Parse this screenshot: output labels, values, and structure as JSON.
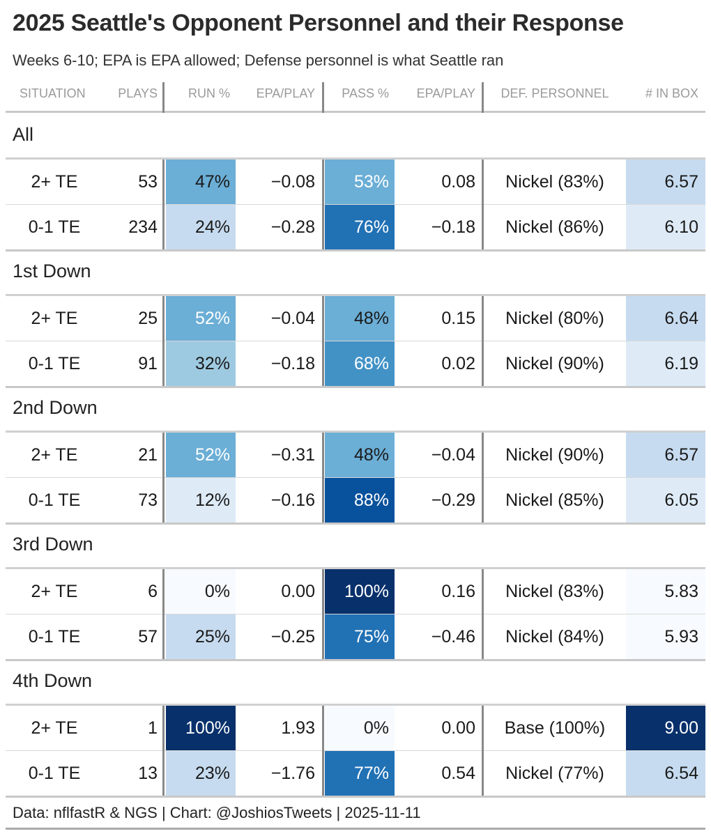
{
  "title": "2025 Seattle's Opponent Personnel and their Response",
  "subtitle": "Weeks 6-10; EPA is EPA allowed; Defense personnel is what Seattle ran",
  "footer": "Data: nflfastR & NGS | Chart: @JoshiosTweets | 2025-11-11",
  "headers": [
    "SITUATION",
    "PLAYS",
    "RUN %",
    "EPA/PLAY",
    "PASS %",
    "EPA/PLAY",
    "DEF. PERSONNEL",
    "# IN BOX"
  ],
  "chart_data": {
    "type": "table",
    "columns": [
      "SITUATION",
      "PLAYS",
      "RUN %",
      "EPA/PLAY",
      "PASS %",
      "EPA/PLAY",
      "DEF. PERSONNEL",
      "# IN BOX"
    ],
    "colors": {
      "scale": [
        "#f7fbff",
        "#deebf7",
        "#c6dbef",
        "#9ecae1",
        "#6baed6",
        "#4292c6",
        "#2171b5",
        "#08519c",
        "#08306b"
      ],
      "rule": "#d0d0d0",
      "divider": "#888888"
    },
    "box_range": [
      5.83,
      9.0
    ],
    "groups": [
      {
        "label": "All",
        "rows": [
          {
            "situation": "2+ TE",
            "plays": "53",
            "run_pct": "47%",
            "run_value": 47,
            "run_epa": "−0.08",
            "pass_pct": "53%",
            "pass_value": 53,
            "pass_epa": "0.08",
            "personnel": "Nickel (83%)",
            "in_box": "6.57",
            "in_box_value": 6.57
          },
          {
            "situation": "0-1 TE",
            "plays": "234",
            "run_pct": "24%",
            "run_value": 24,
            "run_epa": "−0.28",
            "pass_pct": "76%",
            "pass_value": 76,
            "pass_epa": "−0.18",
            "personnel": "Nickel (86%)",
            "in_box": "6.10",
            "in_box_value": 6.1
          }
        ]
      },
      {
        "label": "1st Down",
        "rows": [
          {
            "situation": "2+ TE",
            "plays": "25",
            "run_pct": "52%",
            "run_value": 52,
            "run_epa": "−0.04",
            "pass_pct": "48%",
            "pass_value": 48,
            "pass_epa": "0.15",
            "personnel": "Nickel (80%)",
            "in_box": "6.64",
            "in_box_value": 6.64
          },
          {
            "situation": "0-1 TE",
            "plays": "91",
            "run_pct": "32%",
            "run_value": 32,
            "run_epa": "−0.18",
            "pass_pct": "68%",
            "pass_value": 68,
            "pass_epa": "0.02",
            "personnel": "Nickel (90%)",
            "in_box": "6.19",
            "in_box_value": 6.19
          }
        ]
      },
      {
        "label": "2nd Down",
        "rows": [
          {
            "situation": "2+ TE",
            "plays": "21",
            "run_pct": "52%",
            "run_value": 52,
            "run_epa": "−0.31",
            "pass_pct": "48%",
            "pass_value": 48,
            "pass_epa": "−0.04",
            "personnel": "Nickel (90%)",
            "in_box": "6.57",
            "in_box_value": 6.57
          },
          {
            "situation": "0-1 TE",
            "plays": "73",
            "run_pct": "12%",
            "run_value": 12,
            "run_epa": "−0.16",
            "pass_pct": "88%",
            "pass_value": 88,
            "pass_epa": "−0.29",
            "personnel": "Nickel (85%)",
            "in_box": "6.05",
            "in_box_value": 6.05
          }
        ]
      },
      {
        "label": "3rd Down",
        "rows": [
          {
            "situation": "2+ TE",
            "plays": "6",
            "run_pct": "0%",
            "run_value": 0,
            "run_epa": "0.00",
            "pass_pct": "100%",
            "pass_value": 100,
            "pass_epa": "0.16",
            "personnel": "Nickel (83%)",
            "in_box": "5.83",
            "in_box_value": 5.83
          },
          {
            "situation": "0-1 TE",
            "plays": "57",
            "run_pct": "25%",
            "run_value": 25,
            "run_epa": "−0.25",
            "pass_pct": "75%",
            "pass_value": 75,
            "pass_epa": "−0.46",
            "personnel": "Nickel (84%)",
            "in_box": "5.93",
            "in_box_value": 5.93
          }
        ]
      },
      {
        "label": "4th Down",
        "rows": [
          {
            "situation": "2+ TE",
            "plays": "1",
            "run_pct": "100%",
            "run_value": 100,
            "run_epa": "1.93",
            "pass_pct": "0%",
            "pass_value": 0,
            "pass_epa": "0.00",
            "personnel": "Base (100%)",
            "in_box": "9.00",
            "in_box_value": 9.0
          },
          {
            "situation": "0-1 TE",
            "plays": "13",
            "run_pct": "23%",
            "run_value": 23,
            "run_epa": "−1.76",
            "pass_pct": "77%",
            "pass_value": 77,
            "pass_epa": "0.54",
            "personnel": "Nickel (77%)",
            "in_box": "6.54",
            "in_box_value": 6.54
          }
        ]
      }
    ]
  }
}
